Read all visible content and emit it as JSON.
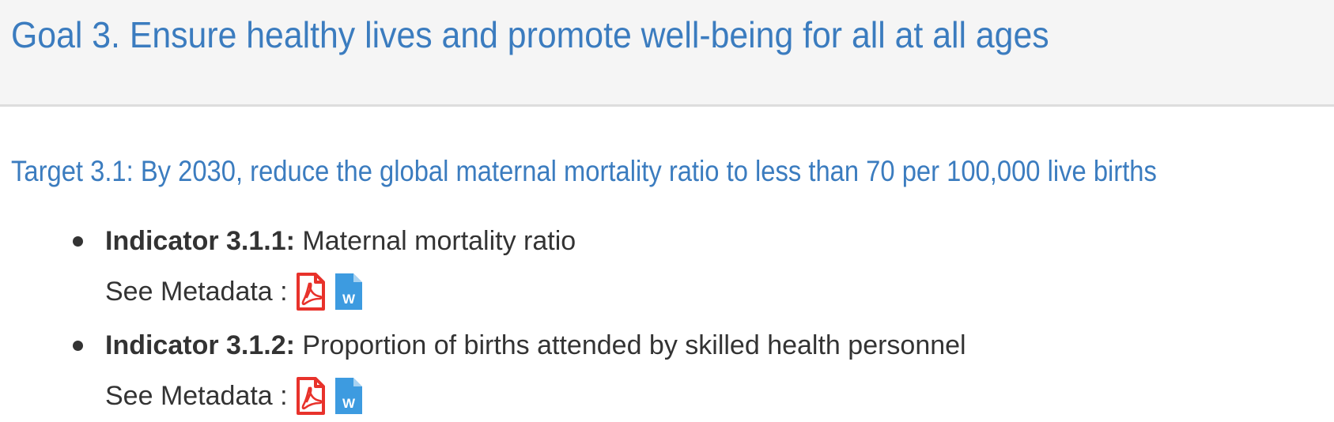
{
  "goal": {
    "title": "Goal 3. Ensure healthy lives and promote well-being for all at all ages"
  },
  "target": {
    "title": "Target 3.1: By 2030, reduce the global maternal mortality ratio to less than 70 per 100,000 live births"
  },
  "indicators": [
    {
      "code": "Indicator 3.1.1:",
      "description": "Maternal mortality ratio",
      "metadata_label": "See Metadata :",
      "pdf_icon": "pdf-file-icon",
      "word_icon": "word-file-icon"
    },
    {
      "code": "Indicator 3.1.2:",
      "description": "Proportion of births attended by skilled health personnel",
      "metadata_label": "See Metadata :",
      "pdf_icon": "pdf-file-icon",
      "word_icon": "word-file-icon"
    }
  ],
  "icons": {
    "word_letter": "W"
  },
  "colors": {
    "heading": "#3b7cbf",
    "pdf_red": "#e8322b",
    "word_blue": "#3d9be0",
    "header_bg": "#f5f5f5"
  }
}
